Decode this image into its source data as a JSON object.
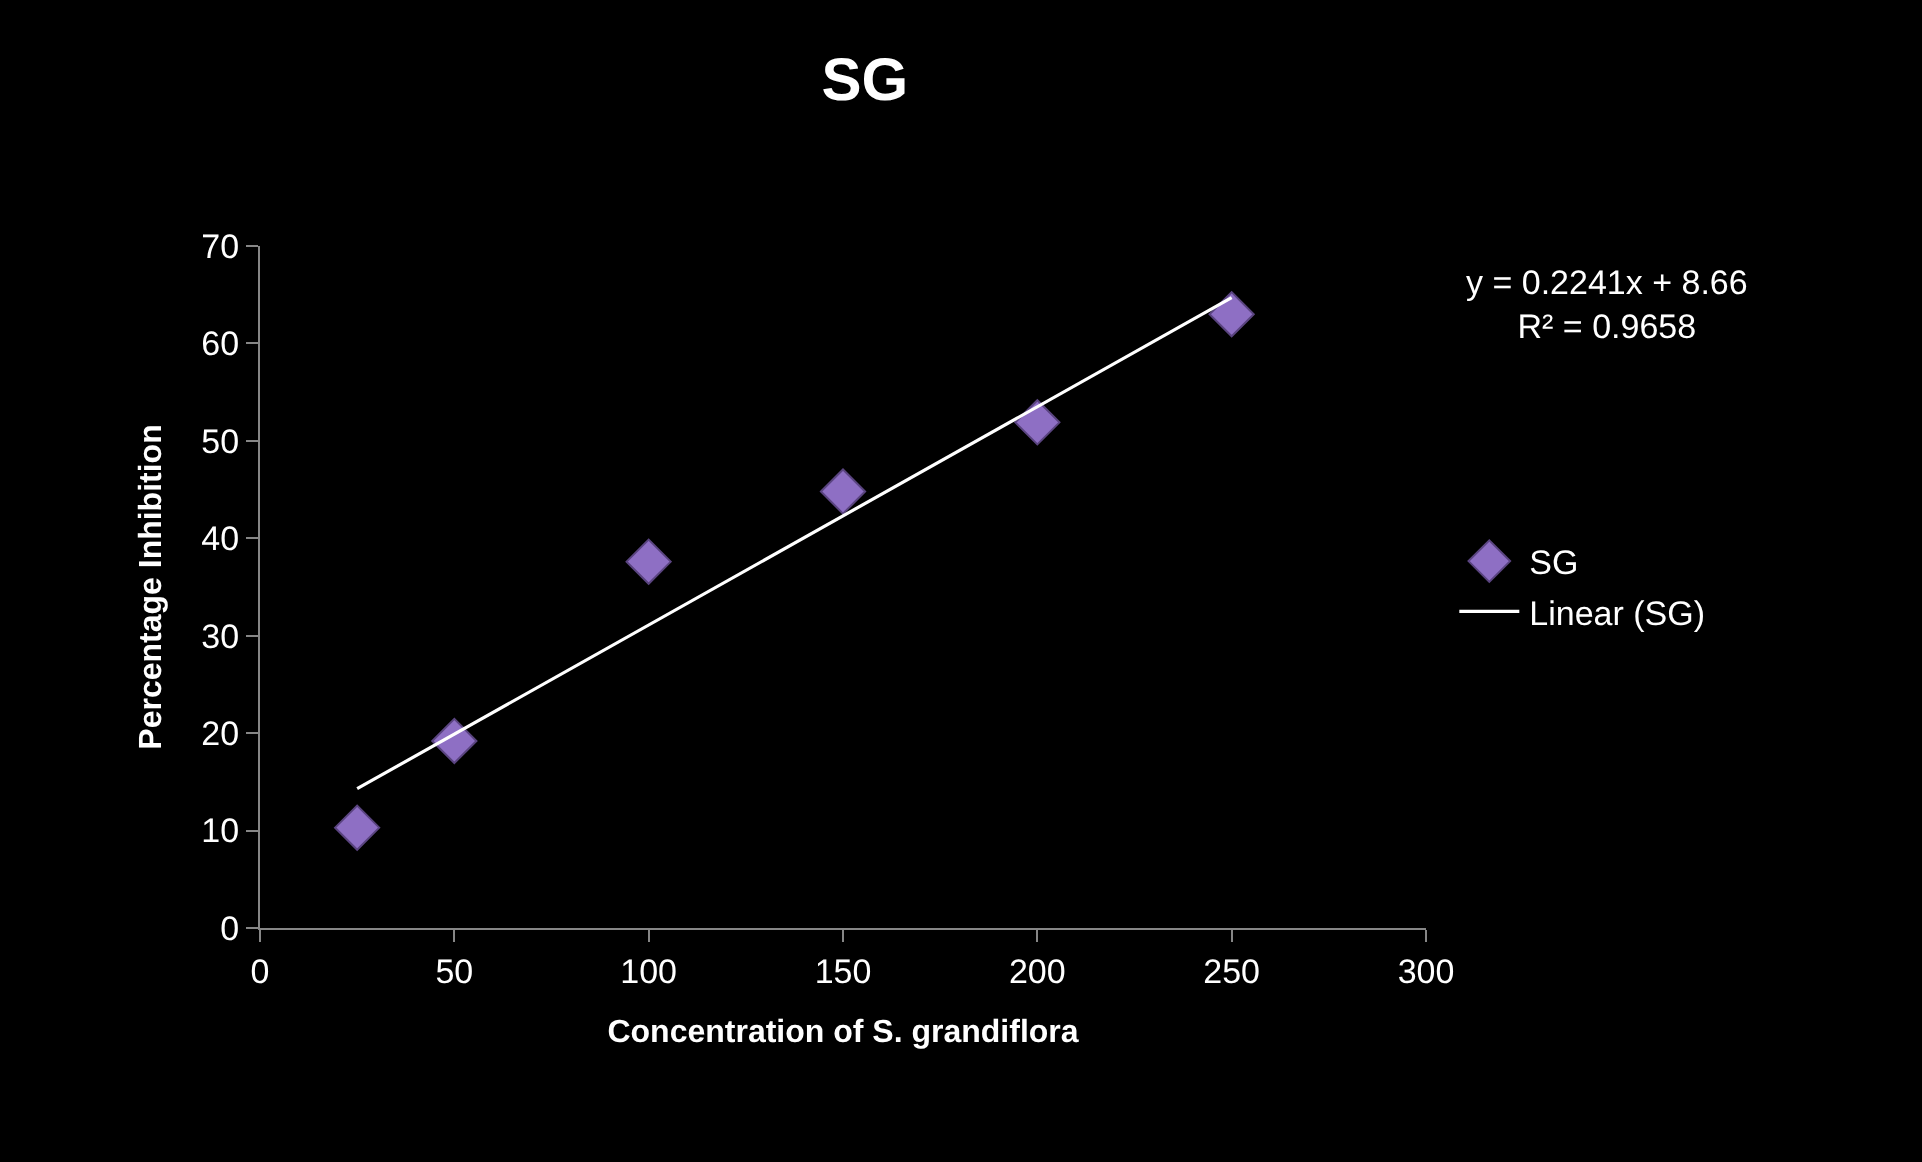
{
  "chart_data": {
    "type": "scatter",
    "title": "SG",
    "xlabel": "Concentration of S. grandiflora",
    "ylabel": "Percentage Inhibition",
    "x": [
      25,
      50,
      100,
      150,
      200,
      250
    ],
    "series": [
      {
        "name": "SG",
        "color": "#8e6fc4",
        "values": [
          10.3,
          19.2,
          37.6,
          44.8,
          51.9,
          63.0
        ],
        "marker": "diamond"
      },
      {
        "name": "Linear (SG)",
        "type": "line",
        "color": "#ffffff",
        "x": [
          25,
          250
        ],
        "values": [
          14.3,
          64.7
        ],
        "marker": "none",
        "line_style": "solid"
      }
    ],
    "annotations": [
      "y = 0.2241x + 8.66",
      "R² = 0.9658"
    ],
    "xlim": [
      0,
      300
    ],
    "xticks": [
      0,
      50,
      100,
      150,
      200,
      250,
      300
    ],
    "ylim": [
      0,
      70
    ],
    "yticks": [
      0,
      10,
      20,
      30,
      40,
      50,
      60,
      70
    ],
    "grid": false,
    "legend": "right"
  }
}
